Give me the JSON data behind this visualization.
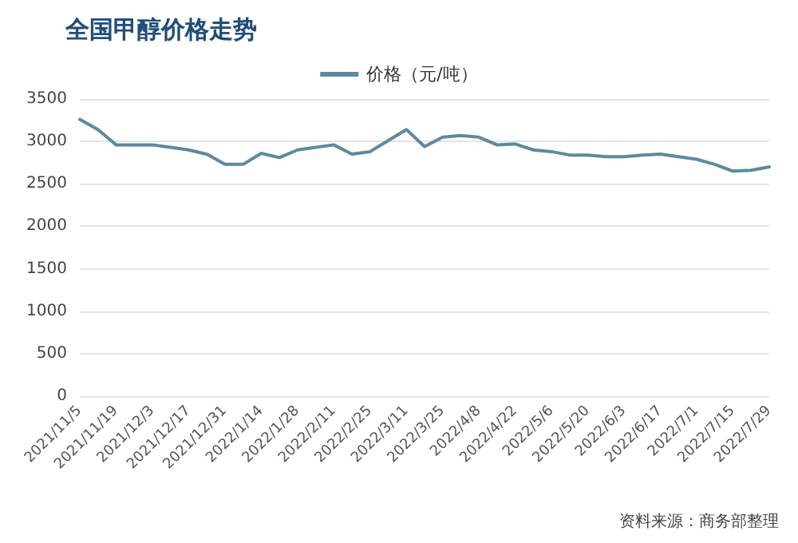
{
  "chart_data": {
    "type": "line",
    "title": "全国甲醇价格走势",
    "categories": [
      "2021/11/5",
      null,
      "2021/11/19",
      null,
      "2021/12/3",
      null,
      "2021/12/17",
      null,
      "2021/12/31",
      null,
      "2022/1/14",
      null,
      "2022/1/28",
      null,
      "2022/2/11",
      null,
      "2022/2/25",
      null,
      "2022/3/11",
      null,
      "2022/3/25",
      null,
      "2022/4/8",
      null,
      "2022/4/22",
      null,
      "2022/5/6",
      null,
      "2022/5/20",
      null,
      "2022/6/3",
      null,
      "2022/6/17",
      null,
      "2022/7/1",
      null,
      "2022/7/15",
      null,
      "2022/7/29"
    ],
    "series": [
      {
        "name": "价格（元/吨）",
        "color": "#5b8ba0",
        "values": [
          3260,
          3140,
          2960,
          2960,
          2960,
          2930,
          2900,
          2850,
          2730,
          2730,
          2860,
          2810,
          2900,
          2930,
          2960,
          2850,
          2880,
          3010,
          3140,
          2940,
          3050,
          3070,
          3050,
          2960,
          2970,
          2900,
          2880,
          2840,
          2840,
          2820,
          2820,
          2840,
          2850,
          2820,
          2790,
          2730,
          2650,
          2660,
          2700
        ]
      }
    ],
    "ylim": [
      0,
      3500
    ],
    "yticks": [
      0,
      500,
      1000,
      1500,
      2000,
      2500,
      3000,
      3500
    ],
    "grid": "y",
    "legend": "top",
    "marker": "none",
    "line_style": "solid",
    "annotations": [
      "资料来源：商务部整理"
    ]
  }
}
